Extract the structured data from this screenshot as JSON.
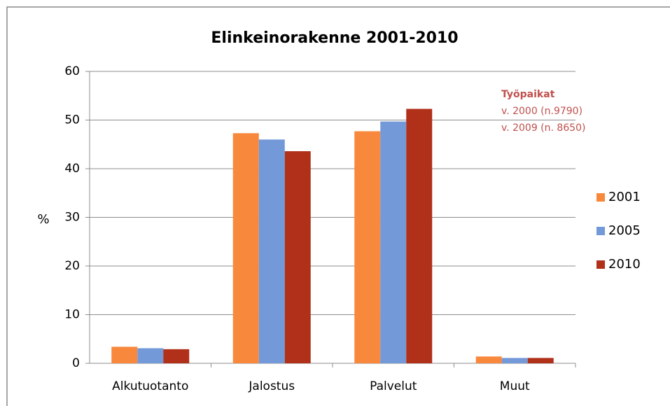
{
  "chart_data": {
    "type": "bar",
    "title": "Elinkeinorakenne 2001-2010",
    "y_label": "%",
    "categories": [
      "Alkutuotanto",
      "Jalostus",
      "Palvelut",
      "Muut"
    ],
    "series": [
      {
        "name": "2001",
        "color": "#f8883c",
        "values": [
          3.4,
          47.3,
          47.7,
          1.4
        ]
      },
      {
        "name": "2005",
        "color": "#7399d8",
        "values": [
          3.1,
          46.0,
          49.7,
          1.1
        ]
      },
      {
        "name": "2010",
        "color": "#b0301a",
        "values": [
          2.9,
          43.6,
          52.3,
          1.1
        ]
      }
    ],
    "ylim": [
      0,
      60
    ],
    "yticks": [
      0,
      10,
      20,
      30,
      40,
      50,
      60
    ],
    "grid": true,
    "legend": "right",
    "annotation": [
      "Työpaikat",
      "v. 2000 (n.9790)",
      "v. 2009 (n. 8650)"
    ]
  }
}
